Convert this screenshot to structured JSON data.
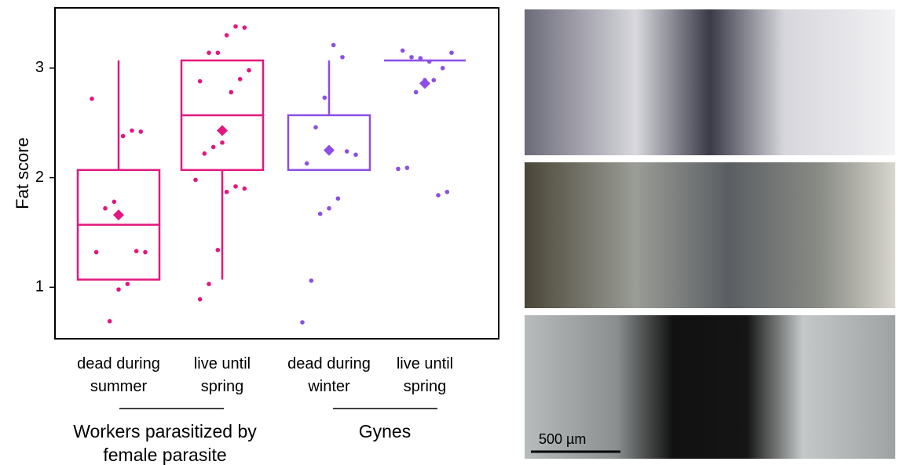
{
  "chart_data": {
    "type": "box",
    "y_label": "Fat score",
    "ylim": [
      0.53,
      3.55
    ],
    "yticks": [
      1,
      2,
      3
    ],
    "categories": [
      "dead during summer",
      "live until spring",
      "dead during winter",
      "live until spring"
    ],
    "groups": [
      "Workers parasitized by female parasite",
      "Gynes"
    ],
    "boxes": [
      {
        "color": "#e3177f",
        "q1": 1.07,
        "median": 1.57,
        "q3": 2.07,
        "whisker_low": 1.07,
        "whisker_high": 3.07,
        "mean": 1.66,
        "points": [
          2.72,
          2.42,
          2.43,
          2.38,
          1.78,
          1.72,
          1.32,
          1.32,
          1.33,
          1.03,
          0.98,
          0.69
        ]
      },
      {
        "color": "#e3177f",
        "q1": 2.07,
        "median": 2.57,
        "q3": 3.07,
        "whisker_low": 1.07,
        "whisker_high": 3.07,
        "mean": 2.43,
        "points": [
          3.37,
          3.38,
          3.3,
          3.14,
          3.14,
          2.88,
          2.98,
          2.9,
          2.78,
          2.32,
          2.28,
          2.22,
          1.98,
          1.9,
          1.92,
          1.87,
          1.34,
          1.03,
          0.89
        ]
      },
      {
        "color": "#8c4ee6",
        "q1": 2.07,
        "median": 2.07,
        "q3": 2.57,
        "whisker_low": 2.07,
        "whisker_high": 3.07,
        "mean": 2.25,
        "points": [
          3.1,
          3.21,
          2.73,
          2.46,
          2.13,
          2.21,
          2.24,
          1.81,
          1.72,
          1.67,
          1.06,
          0.68
        ]
      },
      {
        "color": "#8c4ee6",
        "q1": 3.07,
        "median": 3.07,
        "q3": 3.07,
        "whisker_low": 3.07,
        "whisker_high": 3.07,
        "mean": 2.86,
        "points": [
          3.06,
          3.09,
          3.1,
          3.16,
          3.14,
          3.0,
          2.89,
          2.89,
          2.78,
          2.09,
          2.08,
          1.87,
          1.84
        ]
      }
    ]
  },
  "image_panels": {
    "scale_bar": "500 µm"
  }
}
